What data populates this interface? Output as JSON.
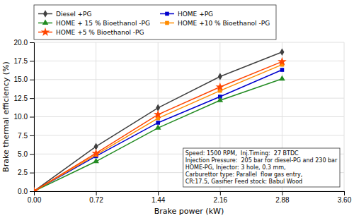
{
  "chart_data": {
    "type": "line",
    "x": [
      0,
      0.72,
      1.44,
      2.16,
      2.88
    ],
    "series": [
      {
        "name": "Diesel +PG",
        "color": "#404040",
        "marker": "diamond",
        "values": [
          0,
          6.0,
          11.2,
          15.4,
          18.7
        ]
      },
      {
        "name": "HOME +PG",
        "color": "#0000CD",
        "marker": "square",
        "values": [
          0,
          4.7,
          9.2,
          12.7,
          16.3
        ]
      },
      {
        "name": "HOME + 15 % Bioethanol -PG",
        "color": "#228B22",
        "marker": "triangle",
        "values": [
          0,
          4.0,
          8.5,
          12.2,
          15.1
        ]
      },
      {
        "name": "HOME +10 % Bioethanol -PG",
        "color": "#FF8C00",
        "marker": "square",
        "values": [
          0,
          4.9,
          9.8,
          13.5,
          17.0
        ]
      },
      {
        "name": "HOME +5 % Bioethanol -PG",
        "color": "#FF4500",
        "marker": "star",
        "values": [
          0,
          5.1,
          10.3,
          14.0,
          17.4
        ]
      }
    ],
    "xlabel": "Brake power (kW)",
    "ylabel": "Brake thermal efficiency (%)",
    "xlim": [
      0,
      3.6
    ],
    "ylim": [
      0,
      20
    ],
    "xticks": [
      {
        "value": 0,
        "label": "0.00"
      },
      0.72,
      1.44,
      2.16,
      2.88,
      {
        "value": 3.6,
        "label": "3.60"
      }
    ],
    "yticks": [
      {
        "value": 0,
        "label": "0.0"
      },
      2.5,
      {
        "value": 5,
        "label": "5.0"
      },
      7.5,
      {
        "value": 10,
        "label": "10.0"
      },
      12.5,
      {
        "value": 15,
        "label": "15.0"
      },
      17.5,
      {
        "value": 20,
        "label": "20.0"
      }
    ],
    "annotation": "Speed: 1500 RPM,  Inj.Timing:  27 BTDC\nInjection Pressure:  205 bar for diesel-PG and 230 bar\nHOME-PG, Injector: 3 hole, 0.3 mm,\nCarburettor type: Parallel  flow gas entry,\nCR:17.5, Gasifier Feed stock: Babul Wood",
    "grid": true,
    "legend": "top"
  }
}
